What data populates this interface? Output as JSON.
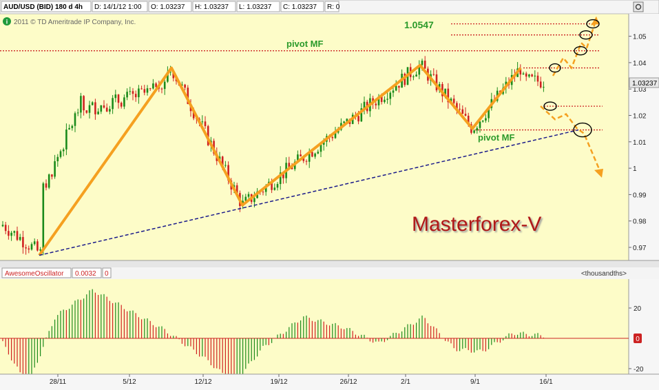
{
  "header": {
    "symbol": "AUD/USD (BID) 180 d 4h",
    "date": "D: 14/1/12 1:00",
    "open": "O: 1.03237",
    "high": "H: 1.03237",
    "low": "L: 1.03237",
    "close": "C: 1.03237",
    "range": "R: 0"
  },
  "copyright": "2011 © TD Ameritrade IP Company, Inc.",
  "info_icon": "info-icon",
  "watermark": "Masterforex-V",
  "annotations": {
    "pivot_top": "pivot MF",
    "pivot_right": "pivot MF",
    "target_value": "1.0547"
  },
  "price_axis": {
    "ticks": [
      "1.05",
      "1.04",
      "1.03",
      "1.02",
      "1.01",
      "1",
      "0.99",
      "0.98",
      "0.97"
    ],
    "current_price": "1.03237"
  },
  "oscillator": {
    "name": "AwesomeOscillator",
    "value": "0.0032",
    "extra": "0",
    "units": "<thousandths>",
    "ticks": [
      "20",
      "0",
      "-20"
    ]
  },
  "time_axis": {
    "labels": [
      "28/11",
      "5/12",
      "12/12",
      "19/12",
      "26/12",
      "2/1",
      "9/1",
      "16/1"
    ]
  },
  "colors": {
    "plot_bg": "#fdfcc8",
    "up": "#1a8a1a",
    "down": "#d02020",
    "zigzag": "#f5a020",
    "trendline": "#1a1a8a",
    "pivot": "#cc2222",
    "label_green": "#2a9a2a",
    "watermark": "#b01818"
  },
  "chart_data": {
    "type": "candlestick",
    "y_range": [
      0.965,
      1.057
    ],
    "zigzag_points": [
      [
        "27/11",
        0.967
      ],
      [
        "7/12",
        1.038
      ],
      [
        "15/12",
        0.986
      ],
      [
        "3/1",
        1.039
      ],
      [
        "9/1",
        1.015
      ],
      [
        "12/1",
        1.038
      ]
    ],
    "trendline": [
      [
        "27/11",
        0.967
      ],
      [
        "17/1",
        1.0145
      ]
    ],
    "pivot_levels": [
      1.0547,
      1.0505,
      1.0445,
      1.038,
      1.0235,
      1.0145
    ],
    "oscillator_range": [
      -22,
      22
    ]
  }
}
